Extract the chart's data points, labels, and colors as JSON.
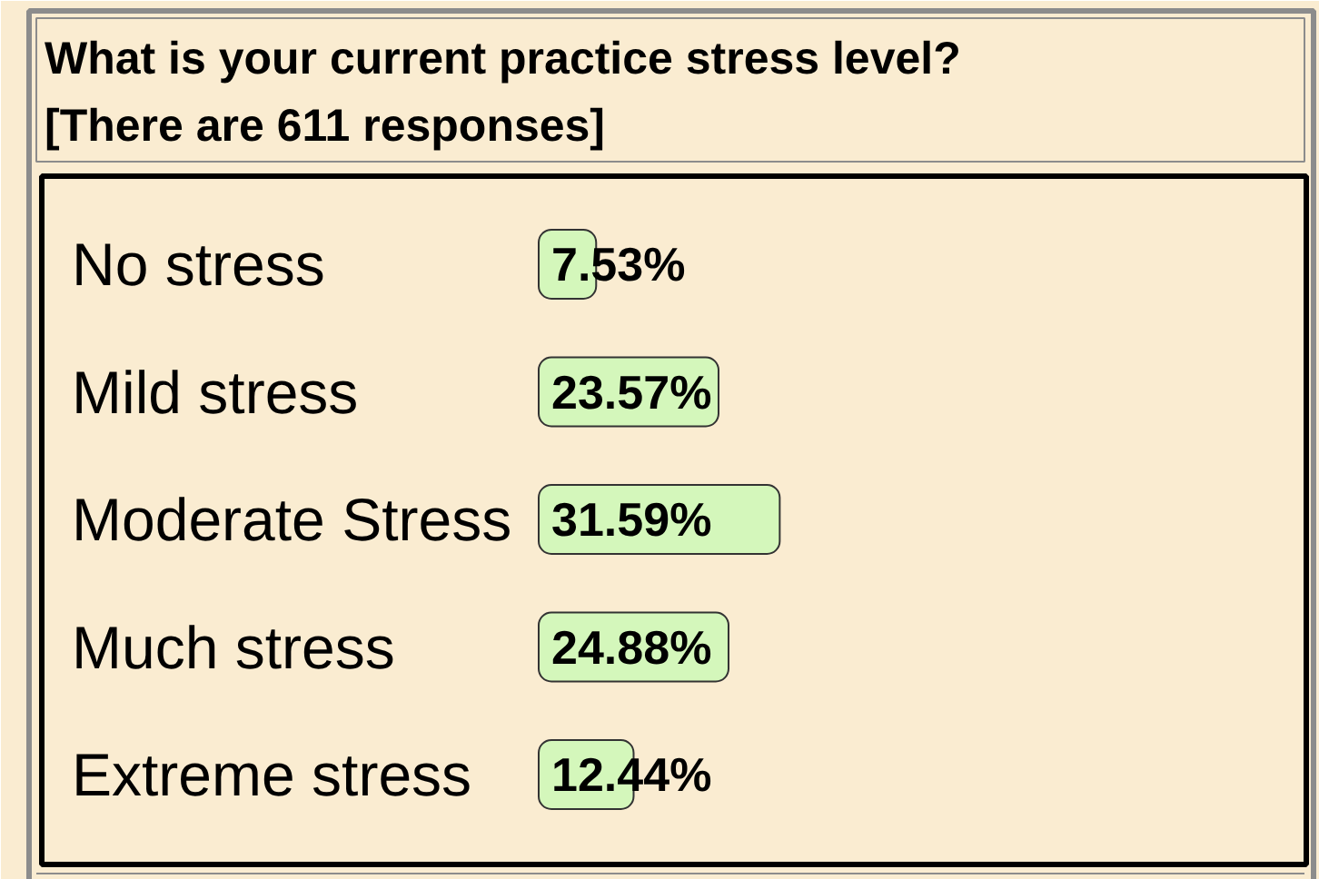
{
  "chart_data": {
    "type": "bar",
    "orientation": "horizontal",
    "title": "What is your current practice stress level?",
    "subtitle": "[There are 611 responses]",
    "categories": [
      "No stress",
      "Mild stress",
      "Moderate Stress",
      "Much stress",
      "Extreme stress"
    ],
    "values": [
      7.53,
      23.57,
      31.59,
      24.88,
      12.44
    ],
    "value_labels": [
      "7.53%",
      "23.57%",
      "31.59%",
      "24.88%",
      "12.44%"
    ],
    "color": "#d4f7bb",
    "xlim": [
      0,
      100
    ],
    "tick_labels": "y"
  }
}
